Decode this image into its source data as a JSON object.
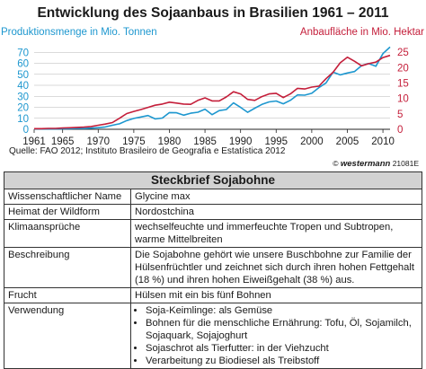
{
  "header": {
    "title": "Entwicklung des Sojaanbaus in Brasilien 1961 – 2011",
    "left_axis_label": "Produktionsmenge in Mio. Tonnen",
    "right_axis_label": "Anbaufläche in Mio. Hektar"
  },
  "chart_data": {
    "type": "line",
    "title": "Entwicklung des Sojaanbaus in Brasilien 1961 – 2011",
    "x_ticks": [
      1961,
      1965,
      1970,
      1975,
      1980,
      1985,
      1990,
      1995,
      2000,
      2005,
      2010
    ],
    "xlim": [
      1961,
      2011
    ],
    "y_left": {
      "label": "Produktionsmenge in Mio. Tonnen",
      "ticks": [
        0,
        10,
        20,
        30,
        40,
        50,
        60,
        70
      ],
      "ylim": [
        0,
        80
      ],
      "color": "#1d97cf"
    },
    "y_right": {
      "label": "Anbaufläche in Mio. Hektar",
      "ticks": [
        0,
        5,
        10,
        15,
        20,
        25
      ],
      "ylim": [
        0,
        28.57
      ],
      "color": "#c41e3a"
    },
    "grid": "horizontal",
    "series": [
      {
        "name": "Produktionsmenge in Mio. Tonnen",
        "axis": "left",
        "color": "#1d97cf",
        "x": [
          1961,
          1962,
          1963,
          1964,
          1965,
          1966,
          1967,
          1968,
          1969,
          1970,
          1971,
          1972,
          1973,
          1974,
          1975,
          1976,
          1977,
          1978,
          1979,
          1980,
          1981,
          1982,
          1983,
          1984,
          1985,
          1986,
          1987,
          1988,
          1989,
          1990,
          1991,
          1992,
          1993,
          1994,
          1995,
          1996,
          1997,
          1998,
          1999,
          2000,
          2001,
          2002,
          2003,
          2004,
          2005,
          2006,
          2007,
          2008,
          2009,
          2010,
          2011
        ],
        "y": [
          0.3,
          0.3,
          0.3,
          0.3,
          0.5,
          0.6,
          0.7,
          0.7,
          1.1,
          1.5,
          2.1,
          3.7,
          5.0,
          7.9,
          9.9,
          11.2,
          12.5,
          9.5,
          10.2,
          15.2,
          15.0,
          12.8,
          14.6,
          15.5,
          18.3,
          13.3,
          17.0,
          18.0,
          24.0,
          19.9,
          15.4,
          19.2,
          22.6,
          24.9,
          25.7,
          23.2,
          26.4,
          31.3,
          31.0,
          32.7,
          37.9,
          42.1,
          51.9,
          49.5,
          51.2,
          52.5,
          57.9,
          59.8,
          57.3,
          68.8,
          74.8
        ]
      },
      {
        "name": "Anbaufläche in Mio. Hektar",
        "axis": "right",
        "color": "#c41e3a",
        "x": [
          1961,
          1962,
          1963,
          1964,
          1965,
          1966,
          1967,
          1968,
          1969,
          1970,
          1971,
          1972,
          1973,
          1974,
          1975,
          1976,
          1977,
          1978,
          1979,
          1980,
          1981,
          1982,
          1983,
          1984,
          1985,
          1986,
          1987,
          1988,
          1989,
          1990,
          1991,
          1992,
          1993,
          1994,
          1995,
          1996,
          1997,
          1998,
          1999,
          2000,
          2001,
          2002,
          2003,
          2004,
          2005,
          2006,
          2007,
          2008,
          2009,
          2010,
          2011
        ],
        "y": [
          0.2,
          0.2,
          0.3,
          0.3,
          0.4,
          0.5,
          0.6,
          0.7,
          0.9,
          1.3,
          1.7,
          2.2,
          3.6,
          5.1,
          5.8,
          6.4,
          7.1,
          7.8,
          8.2,
          8.8,
          8.5,
          8.2,
          8.1,
          9.4,
          10.2,
          9.2,
          9.2,
          10.5,
          12.2,
          11.5,
          9.7,
          9.4,
          10.6,
          11.5,
          11.7,
          10.3,
          11.5,
          13.3,
          13.1,
          13.7,
          14.0,
          16.4,
          18.5,
          21.6,
          23.4,
          22.1,
          20.6,
          21.3,
          21.8,
          23.3,
          24.0
        ]
      }
    ]
  },
  "source": "Quelle: FAO 2012; Instituto Brasileiro de Geografia e Estatística 2012",
  "brand": {
    "symbol": "©",
    "name": "westermann",
    "code": "21081E"
  },
  "brief": {
    "title": "Steckbrief Sojabohne",
    "rows": [
      {
        "key": "Wissenschaftlicher Name",
        "value": "Glycine max"
      },
      {
        "key": "Heimat der Wildform",
        "value": "Nordostchina"
      },
      {
        "key": "Klimaansprüche",
        "value": "wechselfeuchte und immerfeuchte Tropen und Subtropen, warme Mittelbreiten"
      },
      {
        "key": "Beschreibung",
        "value": "Die Sojabohne gehört wie unsere Buschbohne zur Familie der Hülsenfrüchtler und zeichnet sich durch ihren hohen Fettgehalt (18 %) und ihren hohen Eiweißgehalt (38 %) aus."
      },
      {
        "key": "Frucht",
        "value": "Hülsen mit ein bis fünf Bohnen"
      },
      {
        "key": "Verwendung",
        "items": [
          "Soja-Keimlinge: als Gemüse",
          "Bohnen für die menschliche Ernährung: Tofu, Öl, Sojamilch, Sojaquark, Sojajoghurt",
          "Sojaschrot als Tierfutter: in der Viehzucht",
          "Verarbeitung zu Biodiesel als Treibstoff"
        ]
      }
    ]
  }
}
